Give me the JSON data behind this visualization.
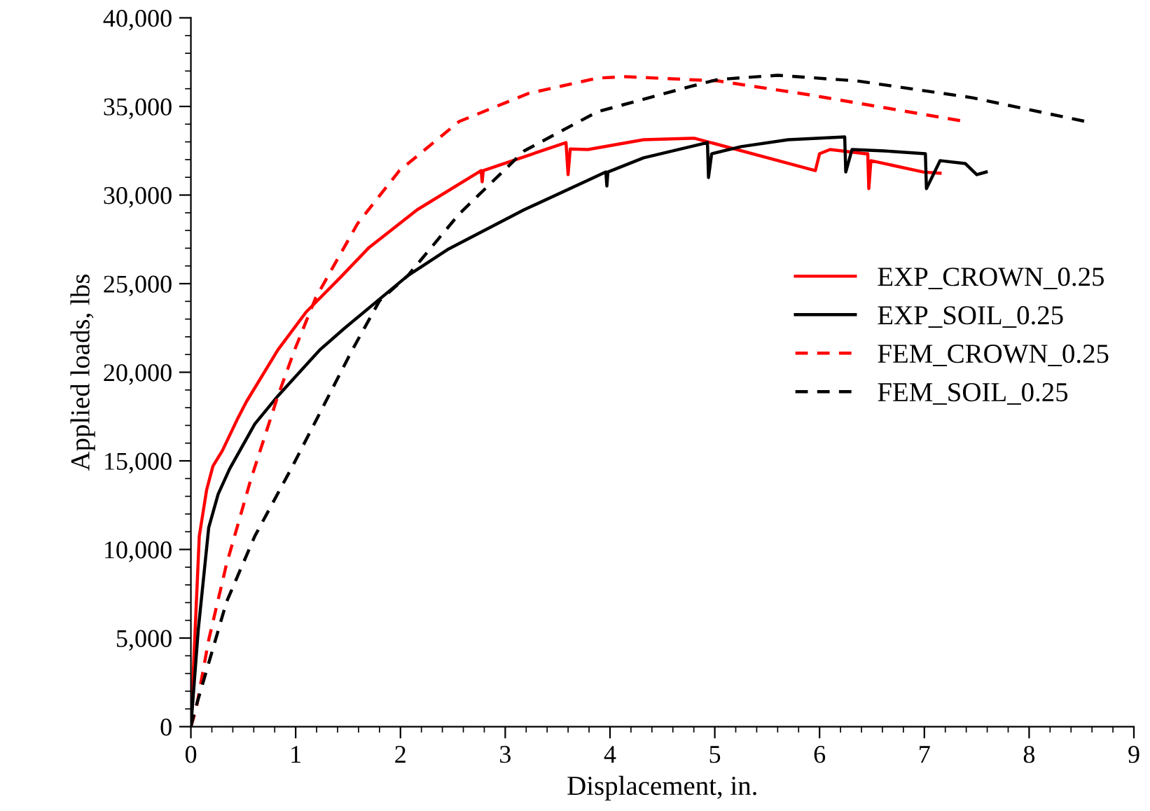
{
  "chart_data": {
    "type": "line",
    "xlabel": "Displacement, in.",
    "ylabel": "Applied loads, lbs",
    "xlim": [
      0,
      9
    ],
    "xticks": [
      0,
      1,
      2,
      3,
      4,
      5,
      6,
      7,
      8,
      9
    ],
    "ylim": [
      0,
      40000
    ],
    "yticks": [
      {
        "value": 0,
        "label": "0"
      },
      {
        "value": 5000,
        "label": "5,000"
      },
      {
        "value": 10000,
        "label": "10,000"
      },
      {
        "value": 15000,
        "label": "15,000"
      },
      {
        "value": 20000,
        "label": "20,000"
      },
      {
        "value": 25000,
        "label": "25,000"
      },
      {
        "value": 30000,
        "label": "30,000"
      },
      {
        "value": 35000,
        "label": "35,000"
      },
      {
        "value": 40000,
        "label": "40,000"
      }
    ],
    "grid": false,
    "legend": "right",
    "marker": "none",
    "series": [
      {
        "name": "EXP_CROWN_0.25",
        "color": "#ff0000",
        "line_style": "solid",
        "x": [
          0,
          0.08,
          0.15,
          0.21,
          0.3,
          0.44,
          0.53,
          0.83,
          1.1,
          1.43,
          1.7,
          2.16,
          2.77,
          2.78,
          2.79,
          3.58,
          3.6,
          3.62,
          3.79,
          4.32,
          4.77,
          4.81,
          5.96,
          6.0,
          6.1,
          6.44,
          6.46,
          6.47,
          6.49,
          6.99,
          7.15
        ],
        "values": [
          0,
          10750,
          13360,
          14700,
          15570,
          17310,
          18340,
          21260,
          23400,
          25370,
          27040,
          29170,
          31380,
          30750,
          31380,
          32960,
          31150,
          32600,
          32570,
          33120,
          33200,
          33200,
          31380,
          32330,
          32570,
          32330,
          32330,
          30360,
          31940,
          31300,
          31230
        ]
      },
      {
        "name": "EXP_SOIL_0.25",
        "color": "#000000",
        "line_style": "solid",
        "x": [
          0,
          0.07,
          0.17,
          0.26,
          0.37,
          0.61,
          0.83,
          1.23,
          1.46,
          2.07,
          2.46,
          3.18,
          3.96,
          3.97,
          3.98,
          4.32,
          4.93,
          4.94,
          4.97,
          5.25,
          5.7,
          6.24,
          6.25,
          6.31,
          6.62,
          7.01,
          7.02,
          7.15,
          7.39,
          7.5,
          7.59
        ],
        "values": [
          0,
          5450,
          11230,
          13120,
          14550,
          17080,
          18660,
          21260,
          22450,
          25450,
          26960,
          29170,
          31300,
          30510,
          31300,
          32100,
          32960,
          30990,
          32330,
          32730,
          33120,
          33280,
          31300,
          32570,
          32490,
          32330,
          30360,
          31940,
          31780,
          31150,
          31300
        ]
      },
      {
        "name": "FEM_CROWN_0.25",
        "color": "#ff0000",
        "line_style": "dashed",
        "x": [
          0,
          0.05,
          0.17,
          0.34,
          0.57,
          0.83,
          0.99,
          1.19,
          1.59,
          1.99,
          2.56,
          3.22,
          3.88,
          4.15,
          5.03,
          5.91,
          7.39
        ],
        "values": [
          0,
          1000,
          4900,
          9170,
          13910,
          18660,
          21260,
          24190,
          28380,
          31380,
          34150,
          35730,
          36600,
          36680,
          36440,
          35650,
          34150
        ]
      },
      {
        "name": "FEM_SOIL_0.25",
        "color": "#000000",
        "line_style": "dashed",
        "x": [
          0,
          0.04,
          0.34,
          0.61,
          0.97,
          1.54,
          1.8,
          2.07,
          2.56,
          3.18,
          3.88,
          4.77,
          5.03,
          5.6,
          6.36,
          7.46,
          8.54
        ],
        "values": [
          0,
          950,
          7040,
          10750,
          14700,
          21260,
          24030,
          25450,
          28930,
          32490,
          34700,
          36130,
          36520,
          36760,
          36440,
          35490,
          34150
        ]
      }
    ]
  }
}
